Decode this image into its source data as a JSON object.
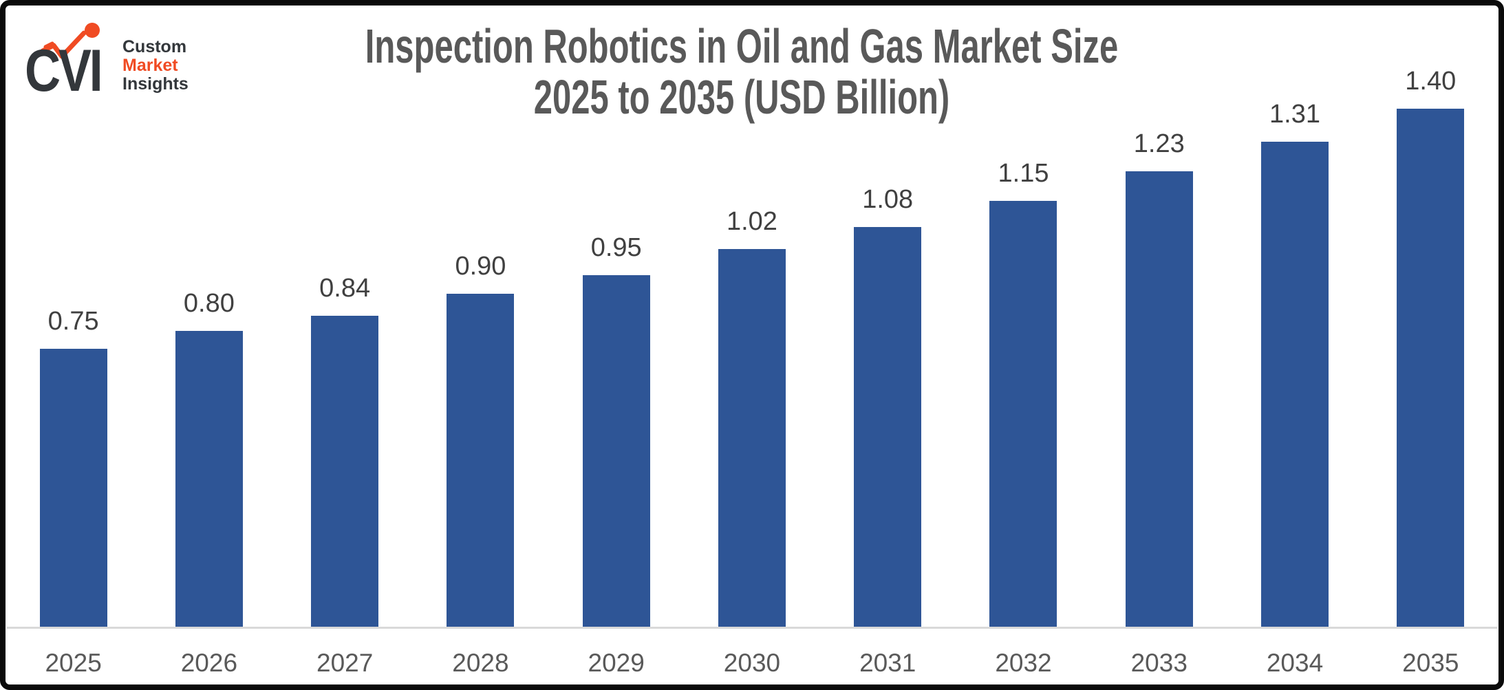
{
  "page": {
    "background": "#FFFFFF",
    "frame_color": "#0A0A0A"
  },
  "logo": {
    "mark_text": "CVI",
    "mark_color": "#33373B",
    "accent_color": "#F04B23",
    "zigzag_icon": "line-graph-with-dot",
    "lines": [
      {
        "text": "Custom",
        "color": "#33373B"
      },
      {
        "text": "Market",
        "color": "#F04B23"
      },
      {
        "text": "Insights",
        "color": "#33373B"
      }
    ]
  },
  "chart_data": {
    "type": "bar",
    "title_line1": "Inspection Robotics in Oil and Gas Market Size",
    "title_line2": "2025 to 2035 (USD Billion)",
    "categories": [
      "2025",
      "2026",
      "2027",
      "2028",
      "2029",
      "2030",
      "2031",
      "2032",
      "2033",
      "2034",
      "2035"
    ],
    "values": [
      0.75,
      0.8,
      0.84,
      0.9,
      0.95,
      1.02,
      1.08,
      1.15,
      1.23,
      1.31,
      1.4
    ],
    "value_labels": [
      "0.75",
      "0.80",
      "0.84",
      "0.90",
      "0.95",
      "1.02",
      "1.08",
      "1.15",
      "1.23",
      "1.31",
      "1.40"
    ],
    "xlabel": "",
    "ylabel": "",
    "ylim": [
      0,
      1.5
    ],
    "grid": false,
    "legend": false,
    "data_labels_position": "above-bars",
    "bar_color": "#2E5596",
    "title_color": "#595959",
    "label_color": "#404040",
    "axis_label_color": "#595959",
    "axis_line_color": "#D9D9D9"
  }
}
